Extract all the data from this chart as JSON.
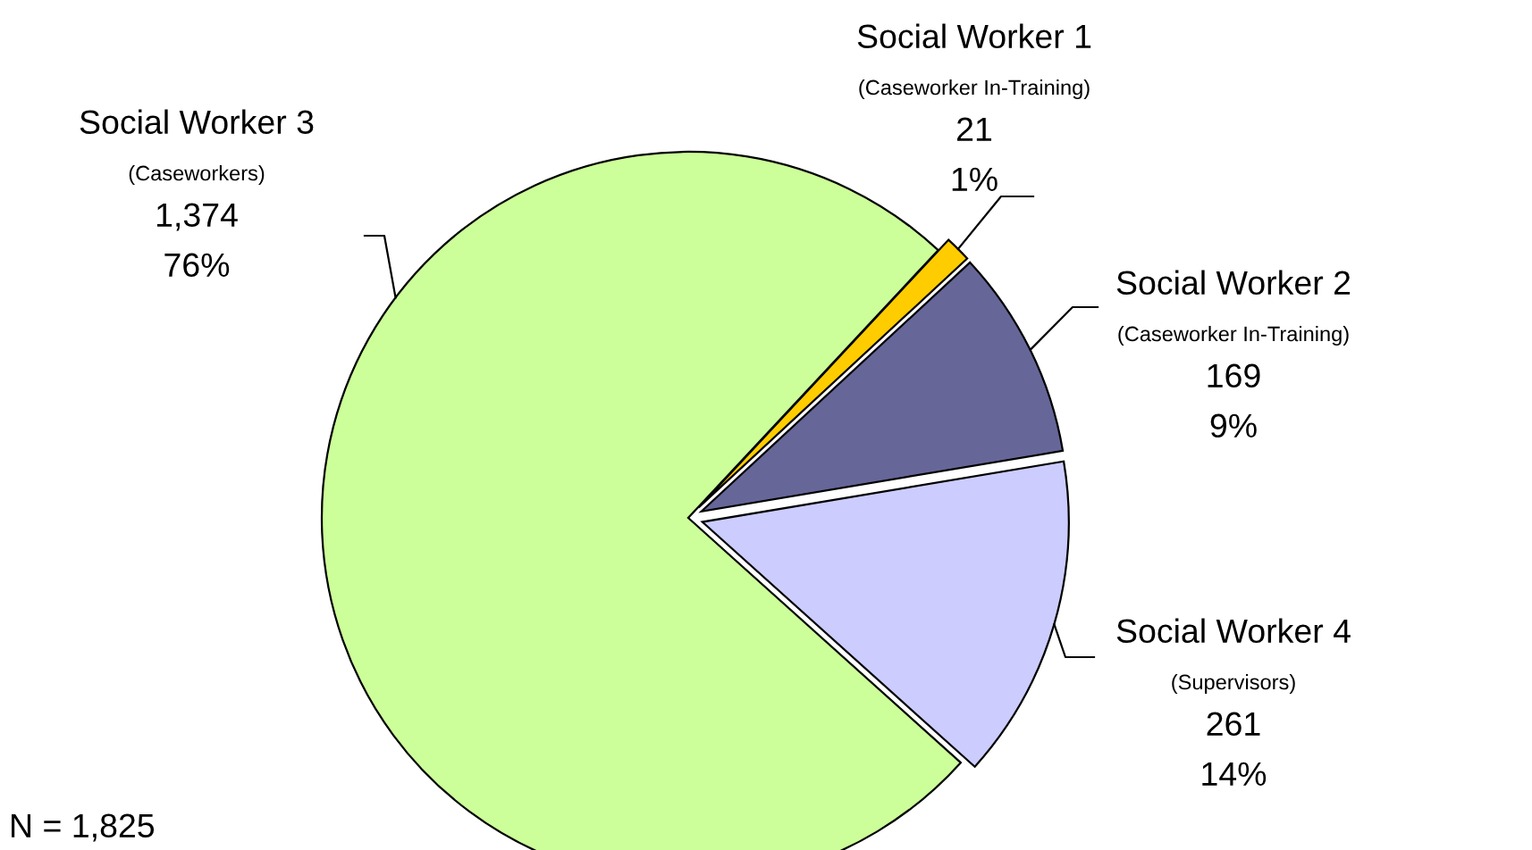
{
  "chart_data": {
    "type": "pie",
    "categories": [
      "Social Worker 1\n(Caseworker In-Training)",
      "Social Worker 2\n(Caseworker In-Training)",
      "Social Worker 4\n(Supervisors)",
      "Social Worker 3\n(Caseworkers)"
    ],
    "values": [
      21,
      169,
      261,
      1374
    ],
    "colors": [
      "#ffcc00",
      "#666699",
      "#ccccff",
      "#ccff99"
    ],
    "value_labels": [
      "21\n1%",
      "169\n9%",
      "261\n14%",
      "1,374\n76%"
    ],
    "annotations": [
      "N = 1,825"
    ]
  }
}
